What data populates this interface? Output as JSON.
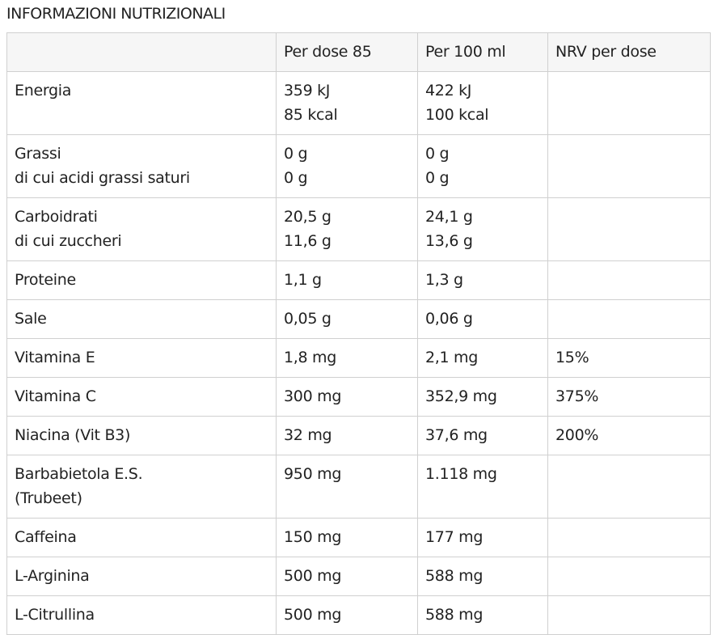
{
  "title": "INFORMAZIONI NUTRIZIONALI",
  "table": {
    "header": [
      null,
      "Per dose 85",
      "Per 100 ml",
      "NRV per dose"
    ],
    "rows": [
      [
        [
          "Energia"
        ],
        [
          "359 kJ",
          "85 kcal"
        ],
        [
          "422 kJ",
          "100 kcal"
        ],
        []
      ],
      [
        [
          "Grassi",
          "di cui acidi grassi saturi"
        ],
        [
          "0 g",
          "0 g"
        ],
        [
          "0 g",
          "0 g"
        ],
        []
      ],
      [
        [
          "Carboidrati",
          "di cui zuccheri"
        ],
        [
          "20,5 g",
          "11,6 g"
        ],
        [
          "24,1 g",
          "13,6 g"
        ],
        []
      ],
      [
        [
          "Proteine"
        ],
        [
          "1,1 g"
        ],
        [
          "1,3 g"
        ],
        []
      ],
      [
        [
          "Sale"
        ],
        [
          "0,05 g"
        ],
        [
          "0,06 g"
        ],
        []
      ],
      [
        [
          "Vitamina E"
        ],
        [
          "1,8 mg"
        ],
        [
          "2,1 mg"
        ],
        [
          "15%"
        ]
      ],
      [
        [
          "Vitamina C"
        ],
        [
          "300 mg"
        ],
        [
          "352,9 mg"
        ],
        [
          "375%"
        ]
      ],
      [
        [
          "Niacina (Vit B3)"
        ],
        [
          "32 mg"
        ],
        [
          "37,6 mg"
        ],
        [
          "200%"
        ]
      ],
      [
        [
          "Barbabietola E.S.",
          "(Trubeet)"
        ],
        [
          "950 mg"
        ],
        [
          "1.118 mg"
        ],
        []
      ],
      [
        [
          "Caffeina"
        ],
        [
          "150 mg"
        ],
        [
          "177 mg"
        ],
        []
      ],
      [
        [
          "L-Arginina"
        ],
        [
          "500 mg"
        ],
        [
          "588 mg"
        ],
        []
      ],
      [
        [
          "L-Citrullina"
        ],
        [
          "500 mg"
        ],
        [
          "588 mg"
        ],
        []
      ]
    ]
  }
}
